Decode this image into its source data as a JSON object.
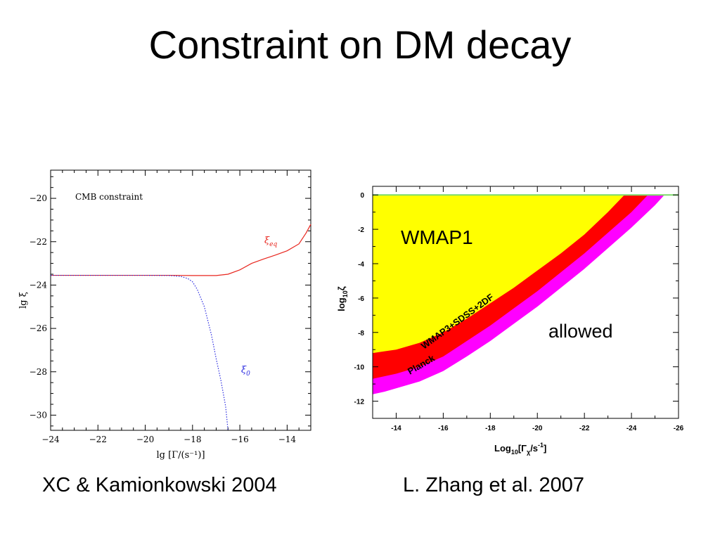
{
  "slide": {
    "title": "Constraint on DM decay",
    "caption_left": "XC & Kamionkowski 2004",
    "caption_right": "L. Zhang et al. 2007"
  },
  "chart_data": [
    {
      "type": "line",
      "annotation": "CMB constraint",
      "xlabel": "lg [Γ/(s⁻¹)]",
      "ylabel": "lg ξ",
      "xlim": [
        -24,
        -13
      ],
      "ylim": [
        -30.7,
        -18.7
      ],
      "xticks": [
        -24,
        -22,
        -20,
        -18,
        -16,
        -14
      ],
      "yticks": [
        -30,
        -28,
        -26,
        -24,
        -22,
        -20
      ],
      "series": [
        {
          "name": "ξ_eq",
          "label_main": "ξ",
          "label_sub": "eq",
          "color": "#e8261e",
          "style": "solid",
          "x": [
            -24,
            -22,
            -20,
            -19,
            -18,
            -17,
            -16.5,
            -16,
            -15.5,
            -15,
            -14.5,
            -14,
            -13.5,
            -13.2,
            -13
          ],
          "y": [
            -23.55,
            -23.55,
            -23.55,
            -23.55,
            -23.56,
            -23.56,
            -23.5,
            -23.3,
            -23.0,
            -22.8,
            -22.62,
            -22.42,
            -22.1,
            -21.6,
            -21.2
          ]
        },
        {
          "name": "ξ_0",
          "label_main": "ξ",
          "label_sub": "0",
          "color": "#2a2ae0",
          "style": "dotted",
          "x": [
            -24,
            -22,
            -20,
            -19,
            -18.5,
            -18.2,
            -18.0,
            -17.8,
            -17.5,
            -17.2,
            -17.0,
            -16.8,
            -16.6,
            -16.5
          ],
          "y": [
            -23.55,
            -23.55,
            -23.55,
            -23.56,
            -23.6,
            -23.7,
            -23.85,
            -24.2,
            -25.0,
            -26.3,
            -27.4,
            -28.4,
            -29.6,
            -30.7
          ]
        }
      ]
    },
    {
      "type": "area",
      "xlabel_main": "Log",
      "xlabel_sub1": "10",
      "xlabel_mid": "[Γ",
      "xlabel_sub2": "χ",
      "xlabel_tail": "/s",
      "xlabel_sup": "-1",
      "xlabel_end": "]",
      "ylabel_main": "log",
      "ylabel_sub": "10",
      "ylabel_tail": "ζ",
      "xlim": [
        -13,
        -26
      ],
      "ylim": [
        -13,
        0.5
      ],
      "xticks": [
        -14,
        -16,
        -18,
        -20,
        -22,
        -24,
        -26
      ],
      "yticks": [
        0,
        -2,
        -4,
        -6,
        -8,
        -10,
        -12
      ],
      "regions": [
        {
          "name": "WMAP1",
          "color": "#ffff00",
          "boundary_x": [
            -13,
            -13.5,
            -14,
            -15,
            -16,
            -17,
            -18,
            -19,
            -20,
            -21,
            -22,
            -23,
            -23.7
          ],
          "boundary_y": [
            -9.2,
            -9.1,
            -9.0,
            -8.6,
            -8.0,
            -7.2,
            -6.3,
            -5.4,
            -4.4,
            -3.4,
            -2.3,
            -1.0,
            0
          ]
        },
        {
          "name": "WMAP3+SDSS+2DF",
          "color": "#ff0000",
          "boundary_x": [
            -13,
            -13.5,
            -14,
            -15,
            -16,
            -17,
            -18,
            -19,
            -20,
            -21,
            -22,
            -23,
            -24,
            -24.7
          ],
          "boundary_y": [
            -10.7,
            -10.55,
            -10.4,
            -10.0,
            -9.4,
            -8.5,
            -7.6,
            -6.6,
            -5.6,
            -4.5,
            -3.4,
            -2.2,
            -1.0,
            0
          ]
        },
        {
          "name": "Planck",
          "color": "#ff00ff",
          "boundary_x": [
            -13,
            -13.5,
            -14,
            -15,
            -16,
            -17,
            -18,
            -19,
            -20,
            -21,
            -22,
            -23,
            -24,
            -25,
            -25.4
          ],
          "boundary_y": [
            -11.6,
            -11.45,
            -11.25,
            -10.85,
            -10.25,
            -9.4,
            -8.5,
            -7.5,
            -6.5,
            -5.4,
            -4.3,
            -3.1,
            -1.9,
            -0.6,
            0
          ]
        }
      ],
      "labels": {
        "wmap1": "WMAP1",
        "allowed": "allowed",
        "wmap3": "WMAP3+SDSS+2DF",
        "planck": "Planck"
      },
      "top_line_color": "#7ddc6a"
    }
  ]
}
